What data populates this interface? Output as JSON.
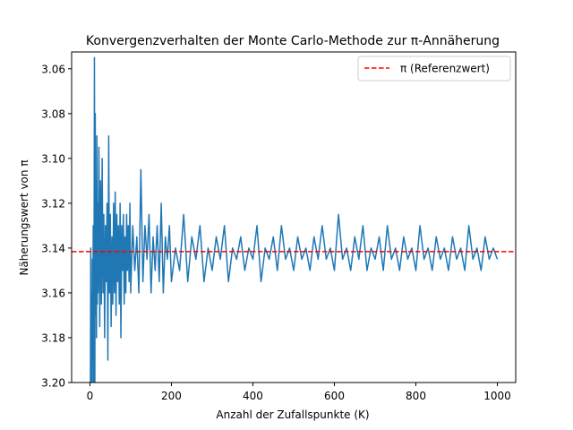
{
  "chart_data": {
    "type": "line",
    "title": "Konvergenzverhalten der Monte Carlo-Methode zur π-Annäherung",
    "xlabel": "Anzahl der Zufallspunkte (K)",
    "ylabel": "Näherungswert von π",
    "xlim": [
      -45,
      1045
    ],
    "ylim": [
      3.2,
      3.0525
    ],
    "y_axis_inverted": true,
    "grid": false,
    "legend_position": "top-right",
    "x_ticks": [
      0,
      200,
      400,
      600,
      800,
      1000
    ],
    "y_ticks": [
      3.06,
      3.08,
      3.1,
      3.12,
      3.14,
      3.16,
      3.18,
      3.2
    ],
    "y_tick_labels": [
      "3.06",
      "3.08",
      "3.10",
      "3.12",
      "3.14",
      "3.16",
      "3.18",
      "3.20"
    ],
    "series": [
      {
        "type": "line",
        "color": "#1f77b4",
        "x": [
          1,
          2,
          3,
          4,
          5,
          6,
          7,
          8,
          9,
          10,
          11,
          12,
          13,
          14,
          15,
          16,
          17,
          18,
          19,
          20,
          22,
          24,
          26,
          28,
          30,
          32,
          34,
          36,
          38,
          40,
          42,
          44,
          46,
          48,
          50,
          52,
          54,
          56,
          58,
          60,
          62,
          64,
          66,
          68,
          70,
          72,
          74,
          76,
          78,
          80,
          82,
          84,
          86,
          88,
          90,
          92,
          94,
          96,
          98,
          100,
          105,
          110,
          115,
          120,
          125,
          130,
          135,
          140,
          145,
          150,
          155,
          160,
          165,
          170,
          175,
          180,
          185,
          190,
          195,
          200,
          210,
          220,
          230,
          240,
          250,
          260,
          270,
          280,
          290,
          300,
          310,
          320,
          330,
          340,
          350,
          360,
          370,
          380,
          390,
          400,
          410,
          420,
          430,
          440,
          450,
          460,
          470,
          480,
          490,
          500,
          510,
          520,
          530,
          540,
          550,
          560,
          570,
          580,
          590,
          600,
          610,
          620,
          630,
          640,
          650,
          660,
          670,
          680,
          690,
          700,
          710,
          720,
          730,
          740,
          750,
          760,
          770,
          780,
          790,
          800,
          810,
          820,
          830,
          840,
          850,
          860,
          870,
          880,
          890,
          900,
          910,
          920,
          930,
          940,
          950,
          960,
          970,
          980,
          990,
          1000
        ],
        "y": [
          3.21,
          3.14,
          3.2,
          3.16,
          3.22,
          3.145,
          3.19,
          3.13,
          3.205,
          3.155,
          3.055,
          3.2,
          3.08,
          3.17,
          3.11,
          3.18,
          3.09,
          3.165,
          3.12,
          3.16,
          3.095,
          3.175,
          3.11,
          3.165,
          3.1,
          3.16,
          3.125,
          3.18,
          3.13,
          3.155,
          3.12,
          3.19,
          3.09,
          3.16,
          3.125,
          3.175,
          3.135,
          3.165,
          3.12,
          3.16,
          3.115,
          3.17,
          3.125,
          3.155,
          3.13,
          3.165,
          3.12,
          3.18,
          3.13,
          3.15,
          3.125,
          3.165,
          3.135,
          3.16,
          3.125,
          3.15,
          3.13,
          3.155,
          3.12,
          3.16,
          3.13,
          3.15,
          3.135,
          3.16,
          3.105,
          3.155,
          3.13,
          3.145,
          3.125,
          3.16,
          3.135,
          3.15,
          3.13,
          3.155,
          3.12,
          3.16,
          3.135,
          3.145,
          3.13,
          3.155,
          3.14,
          3.15,
          3.125,
          3.155,
          3.135,
          3.145,
          3.13,
          3.155,
          3.14,
          3.15,
          3.135,
          3.145,
          3.13,
          3.155,
          3.14,
          3.145,
          3.135,
          3.15,
          3.14,
          3.145,
          3.13,
          3.155,
          3.14,
          3.145,
          3.135,
          3.15,
          3.13,
          3.145,
          3.14,
          3.15,
          3.135,
          3.145,
          3.14,
          3.15,
          3.135,
          3.145,
          3.13,
          3.145,
          3.14,
          3.15,
          3.125,
          3.145,
          3.14,
          3.15,
          3.135,
          3.145,
          3.13,
          3.15,
          3.14,
          3.145,
          3.135,
          3.15,
          3.13,
          3.145,
          3.14,
          3.15,
          3.135,
          3.145,
          3.14,
          3.15,
          3.13,
          3.145,
          3.14,
          3.15,
          3.135,
          3.145,
          3.14,
          3.15,
          3.135,
          3.145,
          3.14,
          3.15,
          3.13,
          3.145,
          3.14,
          3.15,
          3.135,
          3.145,
          3.14,
          3.145
        ]
      },
      {
        "name": "π (Referenzwert)",
        "type": "hline",
        "y": 3.14159,
        "color": "#ff0000",
        "linestyle": "dashed"
      }
    ]
  }
}
